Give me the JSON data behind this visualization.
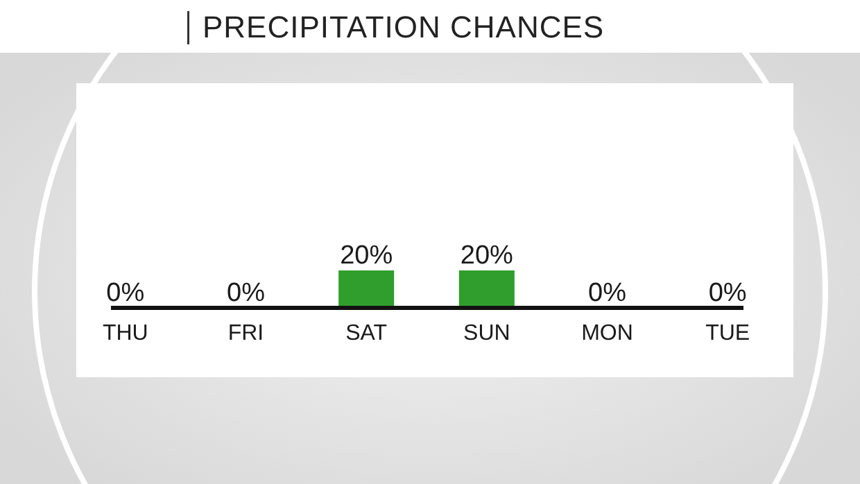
{
  "chart_data": {
    "type": "bar",
    "title": "PRECIPITATION CHANCES",
    "categories": [
      "THU",
      "FRI",
      "SAT",
      "SUN",
      "MON",
      "TUE"
    ],
    "values": [
      0,
      0,
      20,
      20,
      0,
      0
    ],
    "value_labels": [
      "0%",
      "0%",
      "20%",
      "20%",
      "0%",
      "0%"
    ],
    "color": "#2f9e2c"
  }
}
